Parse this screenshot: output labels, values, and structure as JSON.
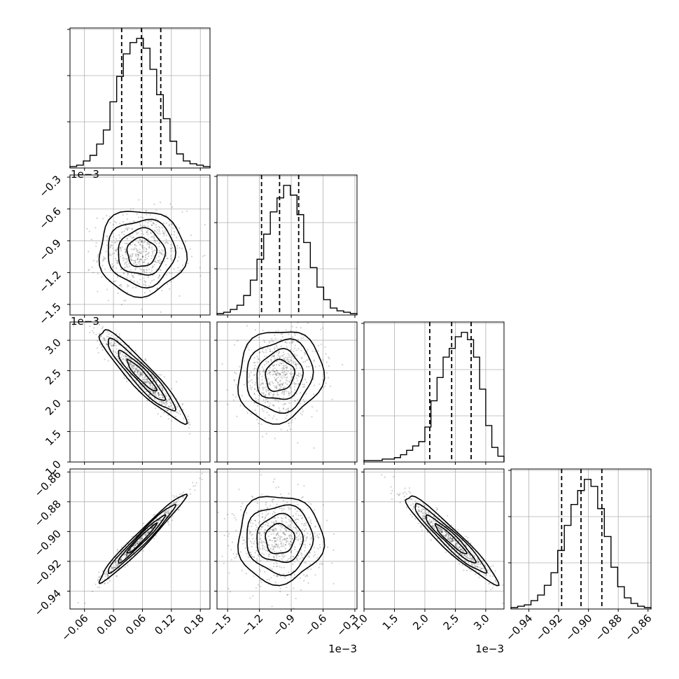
{
  "chart_data": {
    "type": "corner",
    "grid": true,
    "parameters": [
      {
        "range": [
          -0.09,
          0.2
        ],
        "ticks": [
          -0.06,
          0.0,
          0.06,
          0.12,
          0.18
        ],
        "tick_labels": [
          "−0.06",
          "0.00",
          "0.06",
          "0.12",
          "0.18"
        ],
        "axis_offset_label": "",
        "quantiles": [
          0.017,
          0.058,
          0.098
        ],
        "hist": [
          1,
          2,
          5,
          9,
          17,
          27,
          47,
          65,
          81,
          89,
          92,
          85,
          70,
          52,
          35,
          19,
          10,
          5,
          3,
          2,
          1
        ]
      },
      {
        "range": [
          -1.6,
          -0.28
        ],
        "ticks": [
          -1.5,
          -1.2,
          -0.9,
          -0.6,
          -0.3
        ],
        "tick_labels": [
          "−1.5",
          "−1.2",
          "−0.9",
          "−0.6",
          "−0.3"
        ],
        "axis_offset_label": "1e−3",
        "quantiles": [
          -1.18,
          -1.01,
          -0.83
        ],
        "hist": [
          1,
          2,
          4,
          7,
          14,
          25,
          40,
          58,
          74,
          84,
          93,
          86,
          72,
          52,
          34,
          20,
          11,
          5,
          3,
          2,
          1
        ]
      },
      {
        "range": [
          1.0,
          3.3
        ],
        "ticks": [
          1.0,
          1.5,
          2.0,
          2.5,
          3.0
        ],
        "tick_labels": [
          "1.0",
          "1.5",
          "2.0",
          "2.5",
          "3.0"
        ],
        "axis_offset_label": "1e−3",
        "quantiles": [
          2.08,
          2.44,
          2.76
        ],
        "hist": [
          1,
          1,
          1,
          2,
          2,
          3,
          5,
          8,
          11,
          14,
          24,
          42,
          58,
          72,
          78,
          86,
          89,
          84,
          72,
          50,
          25,
          10,
          4
        ]
      },
      {
        "range": [
          -0.952,
          -0.858
        ],
        "ticks": [
          -0.94,
          -0.92,
          -0.9,
          -0.88,
          -0.86
        ],
        "tick_labels": [
          "−0.94",
          "−0.92",
          "−0.90",
          "−0.88",
          "−0.86"
        ],
        "axis_offset_label": "",
        "quantiles": [
          -0.918,
          -0.905,
          -0.891
        ],
        "hist": [
          1,
          2,
          3,
          6,
          10,
          17,
          26,
          42,
          60,
          75,
          85,
          93,
          88,
          72,
          52,
          30,
          16,
          8,
          4,
          2,
          1
        ]
      }
    ],
    "pairs": [
      {
        "x": 0,
        "y": 1,
        "center": [
          0.058,
          -1.01
        ],
        "sd": [
          0.038,
          0.17
        ],
        "corr": 0.0
      },
      {
        "x": 0,
        "y": 2,
        "center": [
          0.058,
          2.42
        ],
        "sd": [
          0.038,
          0.32
        ],
        "corr": -0.93
      },
      {
        "x": 0,
        "y": 3,
        "center": [
          0.058,
          -0.905
        ],
        "sd": [
          0.038,
          0.0125
        ],
        "corr": 0.975
      },
      {
        "x": 1,
        "y": 2,
        "center": [
          -1.01,
          2.42
        ],
        "sd": [
          0.17,
          0.32
        ],
        "corr": 0.1
      },
      {
        "x": 1,
        "y": 3,
        "center": [
          -1.01,
          -0.905
        ],
        "sd": [
          0.17,
          0.0125
        ],
        "corr": 0.0
      },
      {
        "x": 2,
        "y": 3,
        "center": [
          2.42,
          -0.905
        ],
        "sd": [
          0.32,
          0.0125
        ],
        "corr": -0.95
      }
    ]
  }
}
